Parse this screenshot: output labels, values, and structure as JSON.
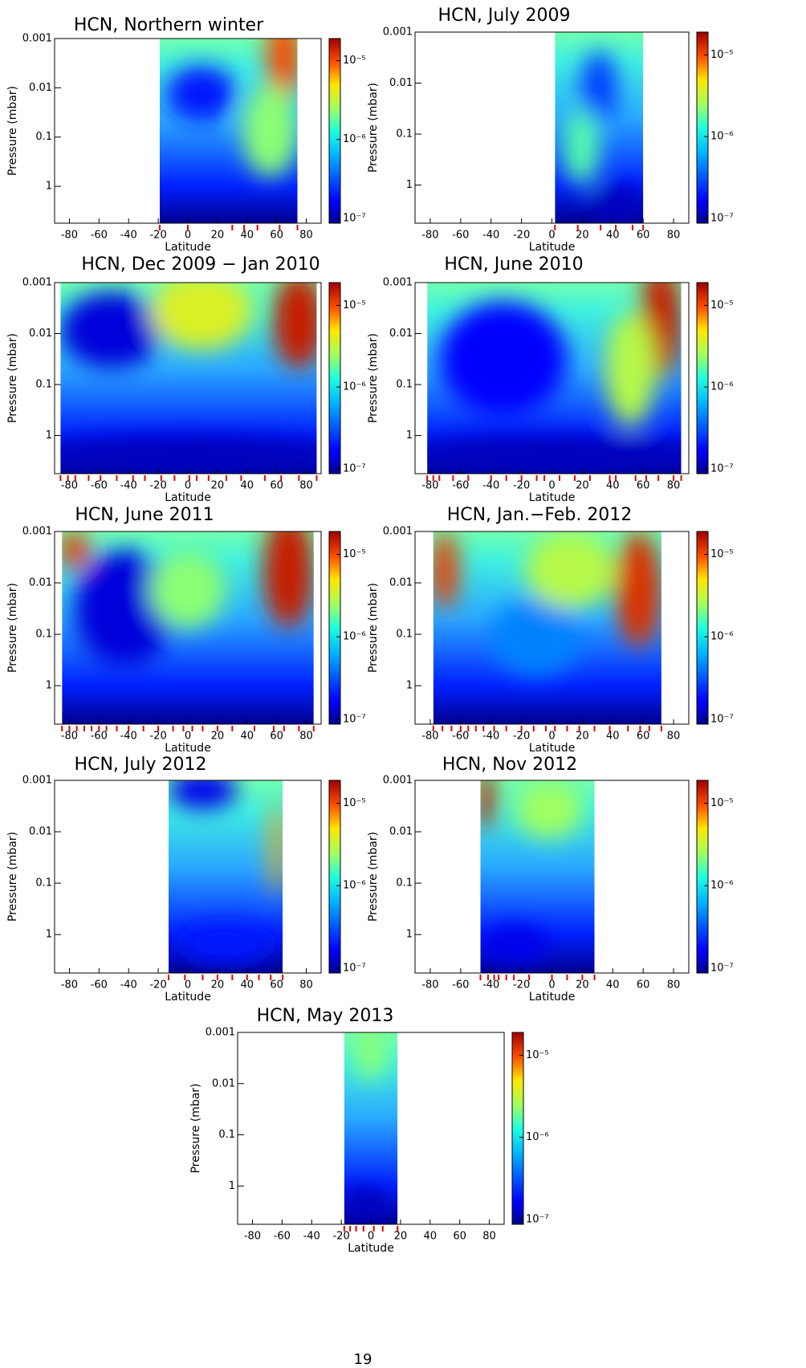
{
  "chart_data": [
    {
      "type": "heatmap",
      "title": "HCN, Northern winter",
      "x_label": "Latitude",
      "y_label": "Pressure (mbar)",
      "xlim": [
        -90,
        90
      ],
      "xticks": [
        -80,
        -60,
        -40,
        -20,
        0,
        20,
        40,
        60,
        80
      ],
      "ylim": [
        5.6,
        0.001
      ],
      "yticks": [
        0.001,
        0.01,
        0.1,
        1
      ],
      "y_scale": "log",
      "colorbar": {
        "lim": [
          8.7e-08,
          1.9e-05
        ],
        "scale": "log",
        "ticks": [
          {
            "value": 1e-05,
            "label": "10⁻⁵"
          },
          {
            "value": 1e-06,
            "label": "10⁻⁶"
          },
          {
            "value": 1e-07,
            "label": "10⁻⁷"
          }
        ]
      },
      "observation_latitudes": [
        -19,
        0,
        30,
        38,
        47,
        62,
        74
      ],
      "obs_color": "#e00000"
    },
    {
      "type": "heatmap",
      "title": "HCN, July 2009",
      "x_label": "Latitude",
      "y_label": "Pressure (mbar)",
      "xlim": [
        -90,
        90
      ],
      "xticks": [
        -80,
        -60,
        -40,
        -20,
        0,
        20,
        40,
        60,
        80
      ],
      "ylim": [
        5.6,
        0.001
      ],
      "yticks": [
        0.001,
        0.01,
        0.1,
        1
      ],
      "y_scale": "log",
      "colorbar": {
        "lim": [
          8.7e-08,
          1.9e-05
        ],
        "scale": "log",
        "ticks": [
          {
            "value": 1e-05,
            "label": "10⁻⁵"
          },
          {
            "value": 1e-06,
            "label": "10⁻⁶"
          },
          {
            "value": 1e-07,
            "label": "10⁻⁷"
          }
        ]
      },
      "observation_latitudes": [
        2,
        17,
        32,
        42,
        53,
        60
      ],
      "obs_color": "#e00000"
    },
    {
      "type": "heatmap",
      "title": "HCN, Dec 2009 − Jan 2010",
      "x_label": "Latitude",
      "y_label": "Pressure (mbar)",
      "xlim": [
        -90,
        90
      ],
      "xticks": [
        -80,
        -60,
        -40,
        -20,
        0,
        20,
        40,
        60,
        80
      ],
      "ylim": [
        5.6,
        0.001
      ],
      "yticks": [
        0.001,
        0.01,
        0.1,
        1
      ],
      "y_scale": "log",
      "colorbar": {
        "lim": [
          8.7e-08,
          1.9e-05
        ],
        "scale": "log",
        "ticks": [
          {
            "value": 1e-05,
            "label": "10⁻⁵"
          },
          {
            "value": 1e-06,
            "label": "10⁻⁶"
          },
          {
            "value": 1e-07,
            "label": "10⁻⁷"
          }
        ]
      },
      "observation_latitudes": [
        -86,
        -81,
        -76,
        -67,
        -59,
        -48,
        -37,
        -29,
        -18,
        -9,
        1,
        6,
        14,
        26,
        36,
        52,
        63,
        75,
        87
      ],
      "obs_color": "#e00000"
    },
    {
      "type": "heatmap",
      "title": "HCN, June 2010",
      "x_label": "Latitude",
      "y_label": "Pressure (mbar)",
      "xlim": [
        -90,
        90
      ],
      "xticks": [
        -80,
        -60,
        -40,
        -20,
        0,
        20,
        40,
        60,
        80
      ],
      "ylim": [
        5.6,
        0.001
      ],
      "yticks": [
        0.001,
        0.01,
        0.1,
        1
      ],
      "y_scale": "log",
      "colorbar": {
        "lim": [
          8.7e-08,
          1.9e-05
        ],
        "scale": "log",
        "ticks": [
          {
            "value": 1e-05,
            "label": "10⁻⁵"
          },
          {
            "value": 1e-06,
            "label": "10⁻⁶"
          },
          {
            "value": 1e-07,
            "label": "10⁻⁷"
          }
        ]
      },
      "observation_latitudes": [
        -82,
        -78,
        -74,
        -65,
        -55,
        -40,
        -30,
        -20,
        -10,
        -5,
        5,
        15,
        25,
        38,
        42,
        55,
        62,
        70,
        80,
        85
      ],
      "obs_color": "#e00000"
    },
    {
      "type": "heatmap",
      "title": "HCN, June 2011",
      "x_label": "Latitude",
      "y_label": "Pressure (mbar)",
      "xlim": [
        -90,
        90
      ],
      "xticks": [
        -80,
        -60,
        -40,
        -20,
        0,
        20,
        40,
        60,
        80
      ],
      "ylim": [
        5.6,
        0.001
      ],
      "yticks": [
        0.001,
        0.01,
        0.1,
        1
      ],
      "y_scale": "log",
      "colorbar": {
        "lim": [
          8.7e-08,
          1.9e-05
        ],
        "scale": "log",
        "ticks": [
          {
            "value": 1e-05,
            "label": "10⁻⁵"
          },
          {
            "value": 1e-06,
            "label": "10⁻⁶"
          },
          {
            "value": 1e-07,
            "label": "10⁻⁷"
          }
        ]
      },
      "observation_latitudes": [
        -85,
        -80,
        -75,
        -70,
        -65,
        -60,
        -55,
        -48,
        -40,
        -30,
        -20,
        -10,
        -3,
        3,
        10,
        20,
        30,
        45,
        58,
        65,
        75,
        85
      ],
      "obs_color": "#e00000"
    },
    {
      "type": "heatmap",
      "title": "HCN, Jan.−Feb. 2012",
      "x_label": "Latitude",
      "y_label": "Pressure (mbar)",
      "xlim": [
        -90,
        90
      ],
      "xticks": [
        -80,
        -60,
        -40,
        -20,
        0,
        20,
        40,
        60,
        80
      ],
      "ylim": [
        5.6,
        0.001
      ],
      "yticks": [
        0.001,
        0.01,
        0.1,
        1
      ],
      "y_scale": "log",
      "colorbar": {
        "lim": [
          8.7e-08,
          1.9e-05
        ],
        "scale": "log",
        "ticks": [
          {
            "value": 1e-05,
            "label": "10⁻⁵"
          },
          {
            "value": 1e-06,
            "label": "10⁻⁶"
          },
          {
            "value": 1e-07,
            "label": "10⁻⁷"
          }
        ]
      },
      "observation_latitudes": [
        -78,
        -72,
        -66,
        -60,
        -55,
        -50,
        -45,
        -38,
        -30,
        -20,
        -12,
        -4,
        2,
        10,
        18,
        28,
        38,
        50,
        58,
        64,
        72
      ],
      "obs_color": "#e00000"
    },
    {
      "type": "heatmap",
      "title": "HCN, July 2012",
      "x_label": "Latitude",
      "y_label": "Pressure (mbar)",
      "xlim": [
        -90,
        90
      ],
      "xticks": [
        -80,
        -60,
        -40,
        -20,
        0,
        20,
        40,
        60,
        80
      ],
      "ylim": [
        5.6,
        0.001
      ],
      "yticks": [
        0.001,
        0.01,
        0.1,
        1
      ],
      "y_scale": "log",
      "colorbar": {
        "lim": [
          8.7e-08,
          1.9e-05
        ],
        "scale": "log",
        "ticks": [
          {
            "value": 1e-05,
            "label": "10⁻⁵"
          },
          {
            "value": 1e-06,
            "label": "10⁻⁶"
          },
          {
            "value": 1e-07,
            "label": "10⁻⁷"
          }
        ]
      },
      "observation_latitudes": [
        -13,
        -2,
        10,
        20,
        30,
        40,
        48,
        56,
        64
      ],
      "obs_color": "#e00000"
    },
    {
      "type": "heatmap",
      "title": "HCN, Nov 2012",
      "x_label": "Latitude",
      "y_label": "Pressure (mbar)",
      "xlim": [
        -90,
        90
      ],
      "xticks": [
        -80,
        -60,
        -40,
        -20,
        0,
        20,
        40,
        60,
        80
      ],
      "ylim": [
        5.6,
        0.001
      ],
      "yticks": [
        0.001,
        0.01,
        0.1,
        1
      ],
      "y_scale": "log",
      "colorbar": {
        "lim": [
          8.7e-08,
          1.9e-05
        ],
        "scale": "log",
        "ticks": [
          {
            "value": 1e-05,
            "label": "10⁻⁵"
          },
          {
            "value": 1e-06,
            "label": "10⁻⁶"
          },
          {
            "value": 1e-07,
            "label": "10⁻⁷"
          }
        ]
      },
      "observation_latitudes": [
        -47,
        -42,
        -38,
        -35,
        -30,
        -25,
        -15,
        0,
        10,
        20,
        28
      ],
      "obs_color": "#e00000"
    },
    {
      "type": "heatmap",
      "title": "HCN, May 2013",
      "x_label": "Latitude",
      "y_label": "Pressure (mbar)",
      "xlim": [
        -90,
        90
      ],
      "xticks": [
        -80,
        -60,
        -40,
        -20,
        0,
        20,
        40,
        60,
        80
      ],
      "ylim": [
        5.6,
        0.001
      ],
      "yticks": [
        0.001,
        0.01,
        0.1,
        1
      ],
      "y_scale": "log",
      "colorbar": {
        "lim": [
          8.7e-08,
          1.9e-05
        ],
        "scale": "log",
        "ticks": [
          {
            "value": 1e-05,
            "label": "10⁻⁵"
          },
          {
            "value": 1e-06,
            "label": "10⁻⁶"
          },
          {
            "value": 1e-07,
            "label": "10⁻⁷"
          }
        ]
      },
      "observation_latitudes": [
        -18,
        -14,
        -10,
        -5,
        2,
        8,
        18
      ],
      "obs_color": "#e00000"
    }
  ],
  "page_number": "19"
}
